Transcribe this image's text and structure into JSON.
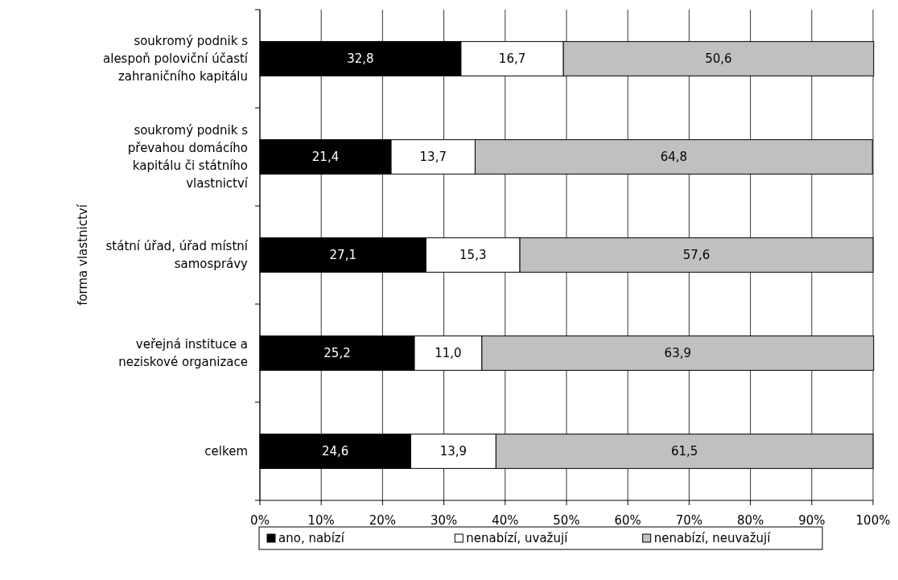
{
  "chart_data": {
    "type": "bar",
    "orientation": "horizontal",
    "stacked": true,
    "ylabel": "forma vlastnictví",
    "categories": [
      "soukromý podnik s alespoň poloviční účastí zahraničního kapitálu",
      "soukromý podnik s převahou domácího kapitálu či státního vlastnictví",
      "státní úřad, úřad místní samosprávy",
      "veřejná instituce a neziskové organizace",
      "celkem"
    ],
    "series": [
      {
        "name": "ano, nabízí",
        "color": "#000000",
        "values": [
          32.8,
          21.4,
          27.1,
          25.2,
          24.6
        ],
        "value_labels": [
          "32,8",
          "21,4",
          "27,1",
          "25,2",
          "24,6"
        ]
      },
      {
        "name": "nenabízí, uvažují",
        "color": "#ffffff",
        "values": [
          16.7,
          13.7,
          15.3,
          11.0,
          13.9
        ],
        "value_labels": [
          "16,7",
          "13,7",
          "15,3",
          "11,0",
          "13,9"
        ]
      },
      {
        "name": "nenabízí, neuvažují",
        "color": "#c0c0c0",
        "values": [
          50.6,
          64.8,
          57.6,
          63.9,
          61.5
        ],
        "value_labels": [
          "50,6",
          "64,8",
          "57,6",
          "63,9",
          "61,5"
        ]
      }
    ],
    "xlim": [
      0,
      100
    ],
    "xticks": [
      {
        "value": 0,
        "label": "0%"
      },
      {
        "value": 10,
        "label": "10%"
      },
      {
        "value": 20,
        "label": "20%"
      },
      {
        "value": 30,
        "label": "30%"
      },
      {
        "value": 40,
        "label": "40%"
      },
      {
        "value": 50,
        "label": "50%"
      },
      {
        "value": 60,
        "label": "60%"
      },
      {
        "value": 70,
        "label": "70%"
      },
      {
        "value": 80,
        "label": "80%"
      },
      {
        "value": 90,
        "label": "90%"
      },
      {
        "value": 100,
        "label": "100%"
      }
    ],
    "grid": "x",
    "legend": "bottom"
  }
}
